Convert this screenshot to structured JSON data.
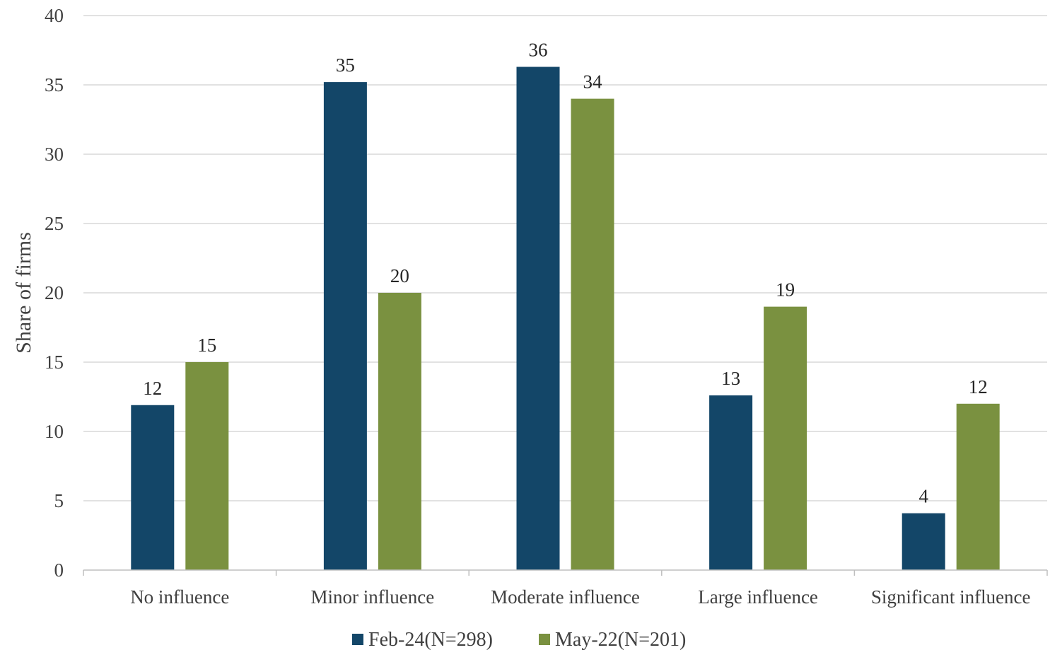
{
  "chart_data": {
    "type": "bar",
    "title": "",
    "xlabel": "",
    "ylabel": "Share of firms",
    "ylim": [
      0,
      40
    ],
    "yticks": [
      0,
      5,
      10,
      15,
      20,
      25,
      30,
      35,
      40
    ],
    "grid": true,
    "legend_position": "bottom",
    "categories": [
      "No influence",
      "Minor influence",
      "Moderate influence",
      "Large influence",
      "Significant influence"
    ],
    "series": [
      {
        "name": "Feb-24(N=298)",
        "color": "#134668",
        "values": [
          11.9,
          35.2,
          36.3,
          12.6,
          4.1
        ],
        "labels": [
          "12",
          "35",
          "36",
          "13",
          "4"
        ]
      },
      {
        "name": "May-22(N=201)",
        "color": "#7a9140",
        "values": [
          15,
          20,
          34,
          19,
          12
        ],
        "labels": [
          "15",
          "20",
          "34",
          "19",
          "12"
        ]
      }
    ]
  }
}
